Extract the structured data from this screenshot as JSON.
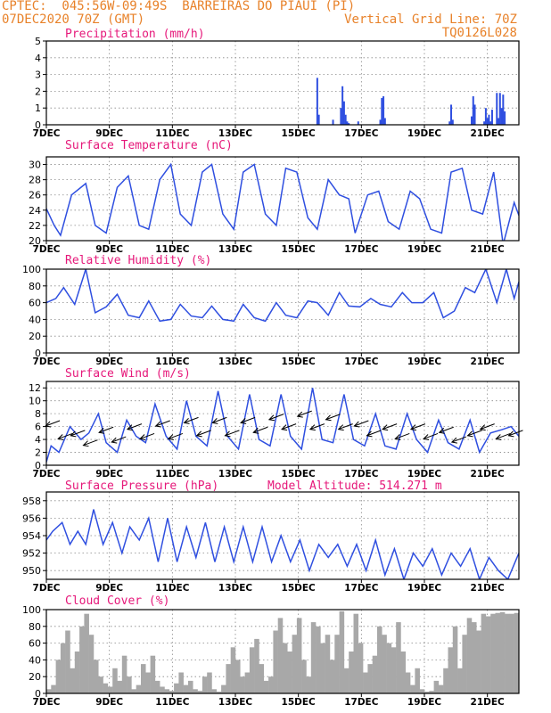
{
  "header": {
    "line1_left": "CPTEC:  045:56W-09:49S  BARREIRAS DO PIAUI (PI)",
    "line2_left": "07DEC2020 70Z (GMT)",
    "line2_right": "Vertical Grid Line: 70Z",
    "line3_right": "TQ0126L028"
  },
  "colors": {
    "header": "#e8822a",
    "title": "#e6187a",
    "series": "#2f4fe0",
    "cloud": "#a8a8a8"
  },
  "x_ticks": [
    "7DEC",
    "9DEC",
    "11DEC",
    "13DEC",
    "15DEC",
    "17DEC",
    "19DEC",
    "21DEC"
  ],
  "chart_data": [
    {
      "type": "bar",
      "title": "Precipitation (mm/h)",
      "ylim": [
        0,
        5
      ],
      "yticks": [
        0,
        1,
        2,
        3,
        4,
        5
      ],
      "xlim": [
        0,
        15
      ],
      "x_tick_pos": [
        0,
        2,
        4,
        6,
        8,
        10,
        12,
        14
      ],
      "grid": true,
      "x": [
        8.6,
        8.65,
        9.1,
        9.35,
        9.4,
        9.45,
        9.5,
        9.55,
        9.6,
        9.9,
        10.6,
        10.65,
        10.7,
        10.75,
        12.8,
        12.85,
        12.9,
        13.5,
        13.55,
        13.6,
        13.9,
        13.95,
        14.0,
        14.05,
        14.1,
        14.15,
        14.3,
        14.35,
        14.4,
        14.45,
        14.5,
        14.55
      ],
      "values": [
        2.8,
        0.6,
        0.3,
        1.0,
        2.3,
        1.4,
        0.6,
        0.2,
        0.1,
        0.2,
        0.3,
        1.6,
        1.7,
        0.4,
        0.2,
        1.2,
        0.3,
        0.5,
        1.7,
        1.2,
        0.2,
        1.0,
        0.4,
        0.6,
        0.2,
        0.9,
        1.9,
        0.4,
        1.9,
        1.0,
        1.8,
        0.8
      ]
    },
    {
      "type": "line",
      "title": "Surface Temperature (nC)",
      "ylim": [
        20,
        31
      ],
      "yticks": [
        20,
        22,
        24,
        26,
        28,
        30
      ],
      "xlim": [
        0,
        15
      ],
      "x_tick_pos": [
        0,
        2,
        4,
        6,
        8,
        10,
        12,
        14
      ],
      "grid": true,
      "x": [
        0,
        0.25,
        0.45,
        0.8,
        1.25,
        1.55,
        1.9,
        2.25,
        2.6,
        2.95,
        3.25,
        3.6,
        3.95,
        4.25,
        4.6,
        4.95,
        5.25,
        5.6,
        5.95,
        6.25,
        6.6,
        6.95,
        7.3,
        7.6,
        7.95,
        8.3,
        8.6,
        8.95,
        9.3,
        9.6,
        9.8,
        10.2,
        10.55,
        10.85,
        11.2,
        11.55,
        11.85,
        12.2,
        12.55,
        12.85,
        13.2,
        13.5,
        13.85,
        14.2,
        14.5,
        14.85,
        15.0
      ],
      "y": [
        24.2,
        22.0,
        20.7,
        26.0,
        27.5,
        22.0,
        21.0,
        27.0,
        28.5,
        22.0,
        21.5,
        28.0,
        30.0,
        23.5,
        22.0,
        29.0,
        30.0,
        23.5,
        21.5,
        29.0,
        30.0,
        23.5,
        22.0,
        29.5,
        29.0,
        23.0,
        21.5,
        28.0,
        26.0,
        25.5,
        21.0,
        26.0,
        26.5,
        22.5,
        21.5,
        26.5,
        25.5,
        21.5,
        21.0,
        29.0,
        29.5,
        24.0,
        23.5,
        29.0,
        19.5,
        25.0,
        23.3
      ]
    },
    {
      "type": "line",
      "title": "Relative Humidity (%)",
      "ylim": [
        0,
        100
      ],
      "yticks": [
        0,
        20,
        40,
        60,
        80,
        100
      ],
      "xlim": [
        0,
        15
      ],
      "x_tick_pos": [
        0,
        2,
        4,
        6,
        8,
        10,
        12,
        14
      ],
      "grid": true,
      "x": [
        0,
        0.3,
        0.55,
        0.9,
        1.25,
        1.55,
        1.9,
        2.25,
        2.6,
        2.95,
        3.25,
        3.6,
        3.95,
        4.25,
        4.6,
        4.95,
        5.25,
        5.6,
        5.95,
        6.25,
        6.6,
        6.95,
        7.3,
        7.6,
        7.95,
        8.3,
        8.6,
        8.95,
        9.3,
        9.6,
        9.95,
        10.3,
        10.6,
        10.95,
        11.3,
        11.6,
        11.95,
        12.3,
        12.6,
        12.95,
        13.3,
        13.6,
        13.95,
        14.3,
        14.6,
        14.85,
        15.0
      ],
      "y": [
        60,
        65,
        78,
        58,
        100,
        48,
        55,
        70,
        45,
        42,
        62,
        38,
        40,
        58,
        44,
        42,
        56,
        40,
        38,
        58,
        42,
        38,
        60,
        45,
        42,
        62,
        60,
        45,
        72,
        56,
        55,
        65,
        58,
        55,
        72,
        60,
        60,
        72,
        42,
        50,
        78,
        72,
        100,
        60,
        100,
        65,
        85
      ]
    },
    {
      "type": "line",
      "title": "Surface Wind (m/s)",
      "ylim": [
        0,
        13
      ],
      "yticks": [
        0,
        2,
        4,
        6,
        8,
        10,
        12
      ],
      "xlim": [
        0,
        15
      ],
      "x_tick_pos": [
        0,
        2,
        4,
        6,
        8,
        10,
        12,
        14
      ],
      "grid": true,
      "x": [
        0,
        0.15,
        0.4,
        0.75,
        1.1,
        1.35,
        1.65,
        1.9,
        2.25,
        2.55,
        2.85,
        3.15,
        3.45,
        3.8,
        4.15,
        4.45,
        4.75,
        5.1,
        5.45,
        5.75,
        6.1,
        6.45,
        6.75,
        7.1,
        7.45,
        7.75,
        8.1,
        8.45,
        8.75,
        9.1,
        9.45,
        9.75,
        10.1,
        10.45,
        10.75,
        11.1,
        11.45,
        11.75,
        12.1,
        12.45,
        12.75,
        13.1,
        13.45,
        13.75,
        14.1,
        14.45,
        14.75,
        15.0
      ],
      "y": [
        0.5,
        3.0,
        2.0,
        6.0,
        4.0,
        5.0,
        8.0,
        3.5,
        2.0,
        7.0,
        4.5,
        3.5,
        9.5,
        4.5,
        2.5,
        10.0,
        4.5,
        3.0,
        11.5,
        4.5,
        2.5,
        11.0,
        4.0,
        3.0,
        11.0,
        4.5,
        2.5,
        12.0,
        4.0,
        3.5,
        11.0,
        4.0,
        3.0,
        8.0,
        3.0,
        2.5,
        8.0,
        4.0,
        2.0,
        7.0,
        3.5,
        2.5,
        7.0,
        2.0,
        5.0,
        5.5,
        6.0,
        4.5
      ]
    },
    {
      "type": "line",
      "title": "Surface Pressure (hPa)",
      "annotation": "Model Altitude: 514.271 m",
      "ylim": [
        949,
        959
      ],
      "yticks": [
        950,
        952,
        954,
        956,
        958
      ],
      "xlim": [
        0,
        15
      ],
      "x_tick_pos": [
        0,
        2,
        4,
        6,
        8,
        10,
        12,
        14
      ],
      "grid": true,
      "x": [
        0,
        0.2,
        0.5,
        0.75,
        1.0,
        1.25,
        1.5,
        1.8,
        2.1,
        2.4,
        2.65,
        2.95,
        3.25,
        3.55,
        3.85,
        4.15,
        4.45,
        4.75,
        5.05,
        5.35,
        5.65,
        5.95,
        6.25,
        6.55,
        6.85,
        7.15,
        7.45,
        7.75,
        8.05,
        8.35,
        8.65,
        8.95,
        9.25,
        9.55,
        9.85,
        10.15,
        10.45,
        10.75,
        11.05,
        11.35,
        11.65,
        11.95,
        12.25,
        12.55,
        12.85,
        13.15,
        13.45,
        13.75,
        14.05,
        14.35,
        14.65,
        15.0
      ],
      "y": [
        953.5,
        954.5,
        955.5,
        953.0,
        954.5,
        953.0,
        957.0,
        953.0,
        955.5,
        952.0,
        955.0,
        953.5,
        956.0,
        951.0,
        956.0,
        951.0,
        955.0,
        951.5,
        955.5,
        951.0,
        955.0,
        951.0,
        955.0,
        951.0,
        955.0,
        951.0,
        954.0,
        951.0,
        953.5,
        950.0,
        953.0,
        951.5,
        953.0,
        950.5,
        953.0,
        950.0,
        953.5,
        949.5,
        952.5,
        949.0,
        952.0,
        950.5,
        952.5,
        949.5,
        952.0,
        950.5,
        952.5,
        949.0,
        951.5,
        950.0,
        949.0,
        952.0
      ]
    },
    {
      "type": "area",
      "title": "Cloud Cover (%)",
      "ylim": [
        0,
        100
      ],
      "yticks": [
        0,
        20,
        40,
        60,
        80,
        100
      ],
      "xlim": [
        0,
        15
      ],
      "x_tick_pos": [
        0,
        2,
        4,
        6,
        8,
        10,
        12,
        14
      ],
      "grid": true,
      "x": [
        0,
        0.15,
        0.3,
        0.45,
        0.6,
        0.75,
        0.9,
        1.05,
        1.2,
        1.35,
        1.5,
        1.65,
        1.8,
        1.95,
        2.1,
        2.25,
        2.4,
        2.55,
        2.7,
        2.85,
        3.0,
        3.15,
        3.3,
        3.45,
        3.6,
        3.75,
        3.9,
        4.05,
        4.2,
        4.35,
        4.5,
        4.65,
        4.8,
        4.95,
        5.1,
        5.25,
        5.4,
        5.55,
        5.7,
        5.85,
        6.0,
        6.15,
        6.3,
        6.45,
        6.6,
        6.75,
        6.9,
        7.05,
        7.2,
        7.35,
        7.5,
        7.65,
        7.8,
        7.95,
        8.1,
        8.25,
        8.4,
        8.55,
        8.7,
        8.85,
        9.0,
        9.15,
        9.3,
        9.45,
        9.6,
        9.75,
        9.9,
        10.05,
        10.2,
        10.35,
        10.5,
        10.65,
        10.8,
        10.95,
        11.1,
        11.25,
        11.4,
        11.55,
        11.7,
        11.85,
        12.0,
        12.15,
        12.3,
        12.45,
        12.6,
        12.75,
        12.9,
        13.05,
        13.2,
        13.35,
        13.5,
        13.65,
        13.8,
        13.95,
        14.1,
        14.25,
        14.4,
        14.55,
        14.7,
        14.85,
        15.0
      ],
      "y": [
        5,
        10,
        40,
        60,
        75,
        30,
        50,
        80,
        95,
        70,
        40,
        20,
        12,
        8,
        30,
        15,
        45,
        20,
        5,
        10,
        35,
        25,
        45,
        15,
        8,
        5,
        3,
        12,
        25,
        10,
        15,
        5,
        3,
        20,
        25,
        5,
        2,
        10,
        35,
        55,
        40,
        20,
        25,
        55,
        65,
        35,
        15,
        20,
        75,
        90,
        60,
        50,
        70,
        90,
        40,
        20,
        85,
        80,
        60,
        70,
        40,
        70,
        98,
        30,
        50,
        95,
        60,
        25,
        35,
        45,
        80,
        70,
        60,
        55,
        85,
        50,
        25,
        10,
        30,
        5,
        2,
        3,
        15,
        10,
        30,
        55,
        80,
        30,
        70,
        90,
        85,
        75,
        95,
        92,
        95,
        96,
        97,
        95,
        95,
        96,
        95
      ]
    }
  ],
  "wind_arrows": {
    "x": [
      0.2,
      0.6,
      1.0,
      1.4,
      1.9,
      2.3,
      2.8,
      3.2,
      3.7,
      4.1,
      4.6,
      5.0,
      5.5,
      5.9,
      6.4,
      6.8,
      7.3,
      7.7,
      8.2,
      8.6,
      9.1,
      9.5,
      10.0,
      10.4,
      10.9,
      11.3,
      11.8,
      12.2,
      12.7,
      13.1,
      13.6,
      14.0,
      14.5,
      14.9
    ],
    "speed": [
      6.5,
      4.5,
      5.0,
      3.5,
      5.5,
      4.0,
      6.0,
      4.5,
      6.5,
      4.5,
      7.0,
      5.0,
      7.0,
      5.0,
      7.0,
      5.5,
      7.5,
      6.0,
      8.0,
      6.0,
      7.5,
      6.0,
      6.5,
      5.0,
      6.0,
      4.5,
      6.0,
      4.5,
      5.5,
      4.0,
      5.0,
      6.0,
      4.5,
      5.0
    ]
  }
}
